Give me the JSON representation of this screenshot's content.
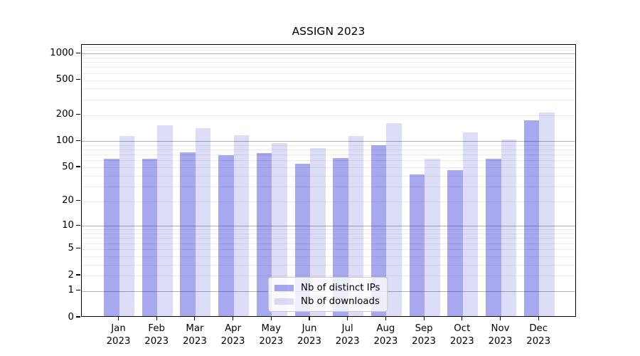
{
  "title": "ASSIGN 2023",
  "chart_data": {
    "type": "bar",
    "title": "ASSIGN 2023",
    "categories": [
      "Jan 2023",
      "Feb 2023",
      "Mar 2023",
      "Apr 2023",
      "May 2023",
      "Jun 2023",
      "Jul 2023",
      "Aug 2023",
      "Sep 2023",
      "Oct 2023",
      "Nov 2023",
      "Dec 2023"
    ],
    "series": [
      {
        "name": "Nb of distinct IPs",
        "color": "rgba(25,25,210,0.38)",
        "values": [
          60,
          61,
          72,
          66,
          70,
          53,
          62,
          87,
          40,
          45,
          60,
          167
        ]
      },
      {
        "name": "Nb of downloads",
        "color": "rgba(25,25,210,0.15)",
        "values": [
          110,
          146,
          136,
          113,
          91,
          81,
          111,
          155,
          60,
          121,
          100,
          206
        ]
      }
    ],
    "xlabel": "",
    "ylabel": "",
    "yscale": "log1p",
    "ylim": [
      0,
      1260
    ],
    "yticks": [
      0,
      1,
      2,
      5,
      10,
      20,
      50,
      100,
      200,
      500,
      1000
    ],
    "grid": {
      "on": true,
      "major_lines": [
        1,
        10,
        100,
        1000
      ],
      "minor_lines": [
        2,
        3,
        4,
        5,
        6,
        7,
        8,
        9,
        20,
        30,
        40,
        50,
        60,
        70,
        80,
        90,
        200,
        300,
        400,
        500,
        600,
        700,
        800,
        900,
        1100,
        1200
      ],
      "major_color": "#b0b0b0",
      "minor_color": "#ebebeb"
    },
    "legend_position": "lower center"
  },
  "legend": {
    "items": [
      {
        "label": "Nb of distinct IPs",
        "swatch_color": "rgba(25,25,210,0.38)"
      },
      {
        "label": "Nb of downloads",
        "swatch_color": "rgba(25,25,210,0.15)"
      }
    ]
  }
}
